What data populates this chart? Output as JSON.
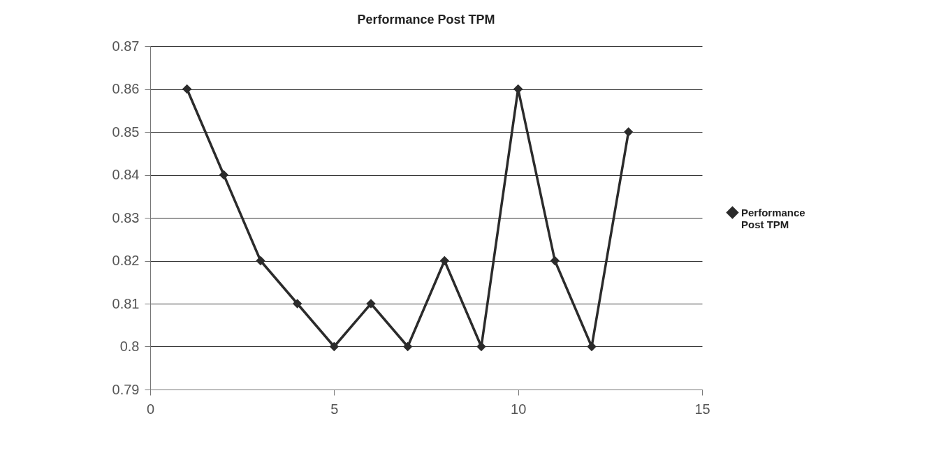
{
  "chart_data": {
    "type": "line",
    "title": "Performance Post TPM",
    "x": [
      1,
      2,
      3,
      4,
      5,
      6,
      7,
      8,
      9,
      10,
      11,
      12,
      13
    ],
    "series": [
      {
        "name": "Performance Post TPM",
        "color": "#2b2b2b",
        "values": [
          0.86,
          0.84,
          0.82,
          0.81,
          0.8,
          0.81,
          0.8,
          0.82,
          0.8,
          0.86,
          0.82,
          0.8,
          0.85
        ]
      }
    ],
    "xlim": [
      0,
      15
    ],
    "xticks": [
      0,
      5,
      10,
      15
    ],
    "ylim": [
      0.79,
      0.87
    ],
    "yticks": [
      0.79,
      0.8,
      0.81,
      0.82,
      0.83,
      0.84,
      0.85,
      0.86,
      0.87
    ],
    "grid": "y",
    "legend": "right",
    "marker": "diamond",
    "line_style": "solid"
  }
}
